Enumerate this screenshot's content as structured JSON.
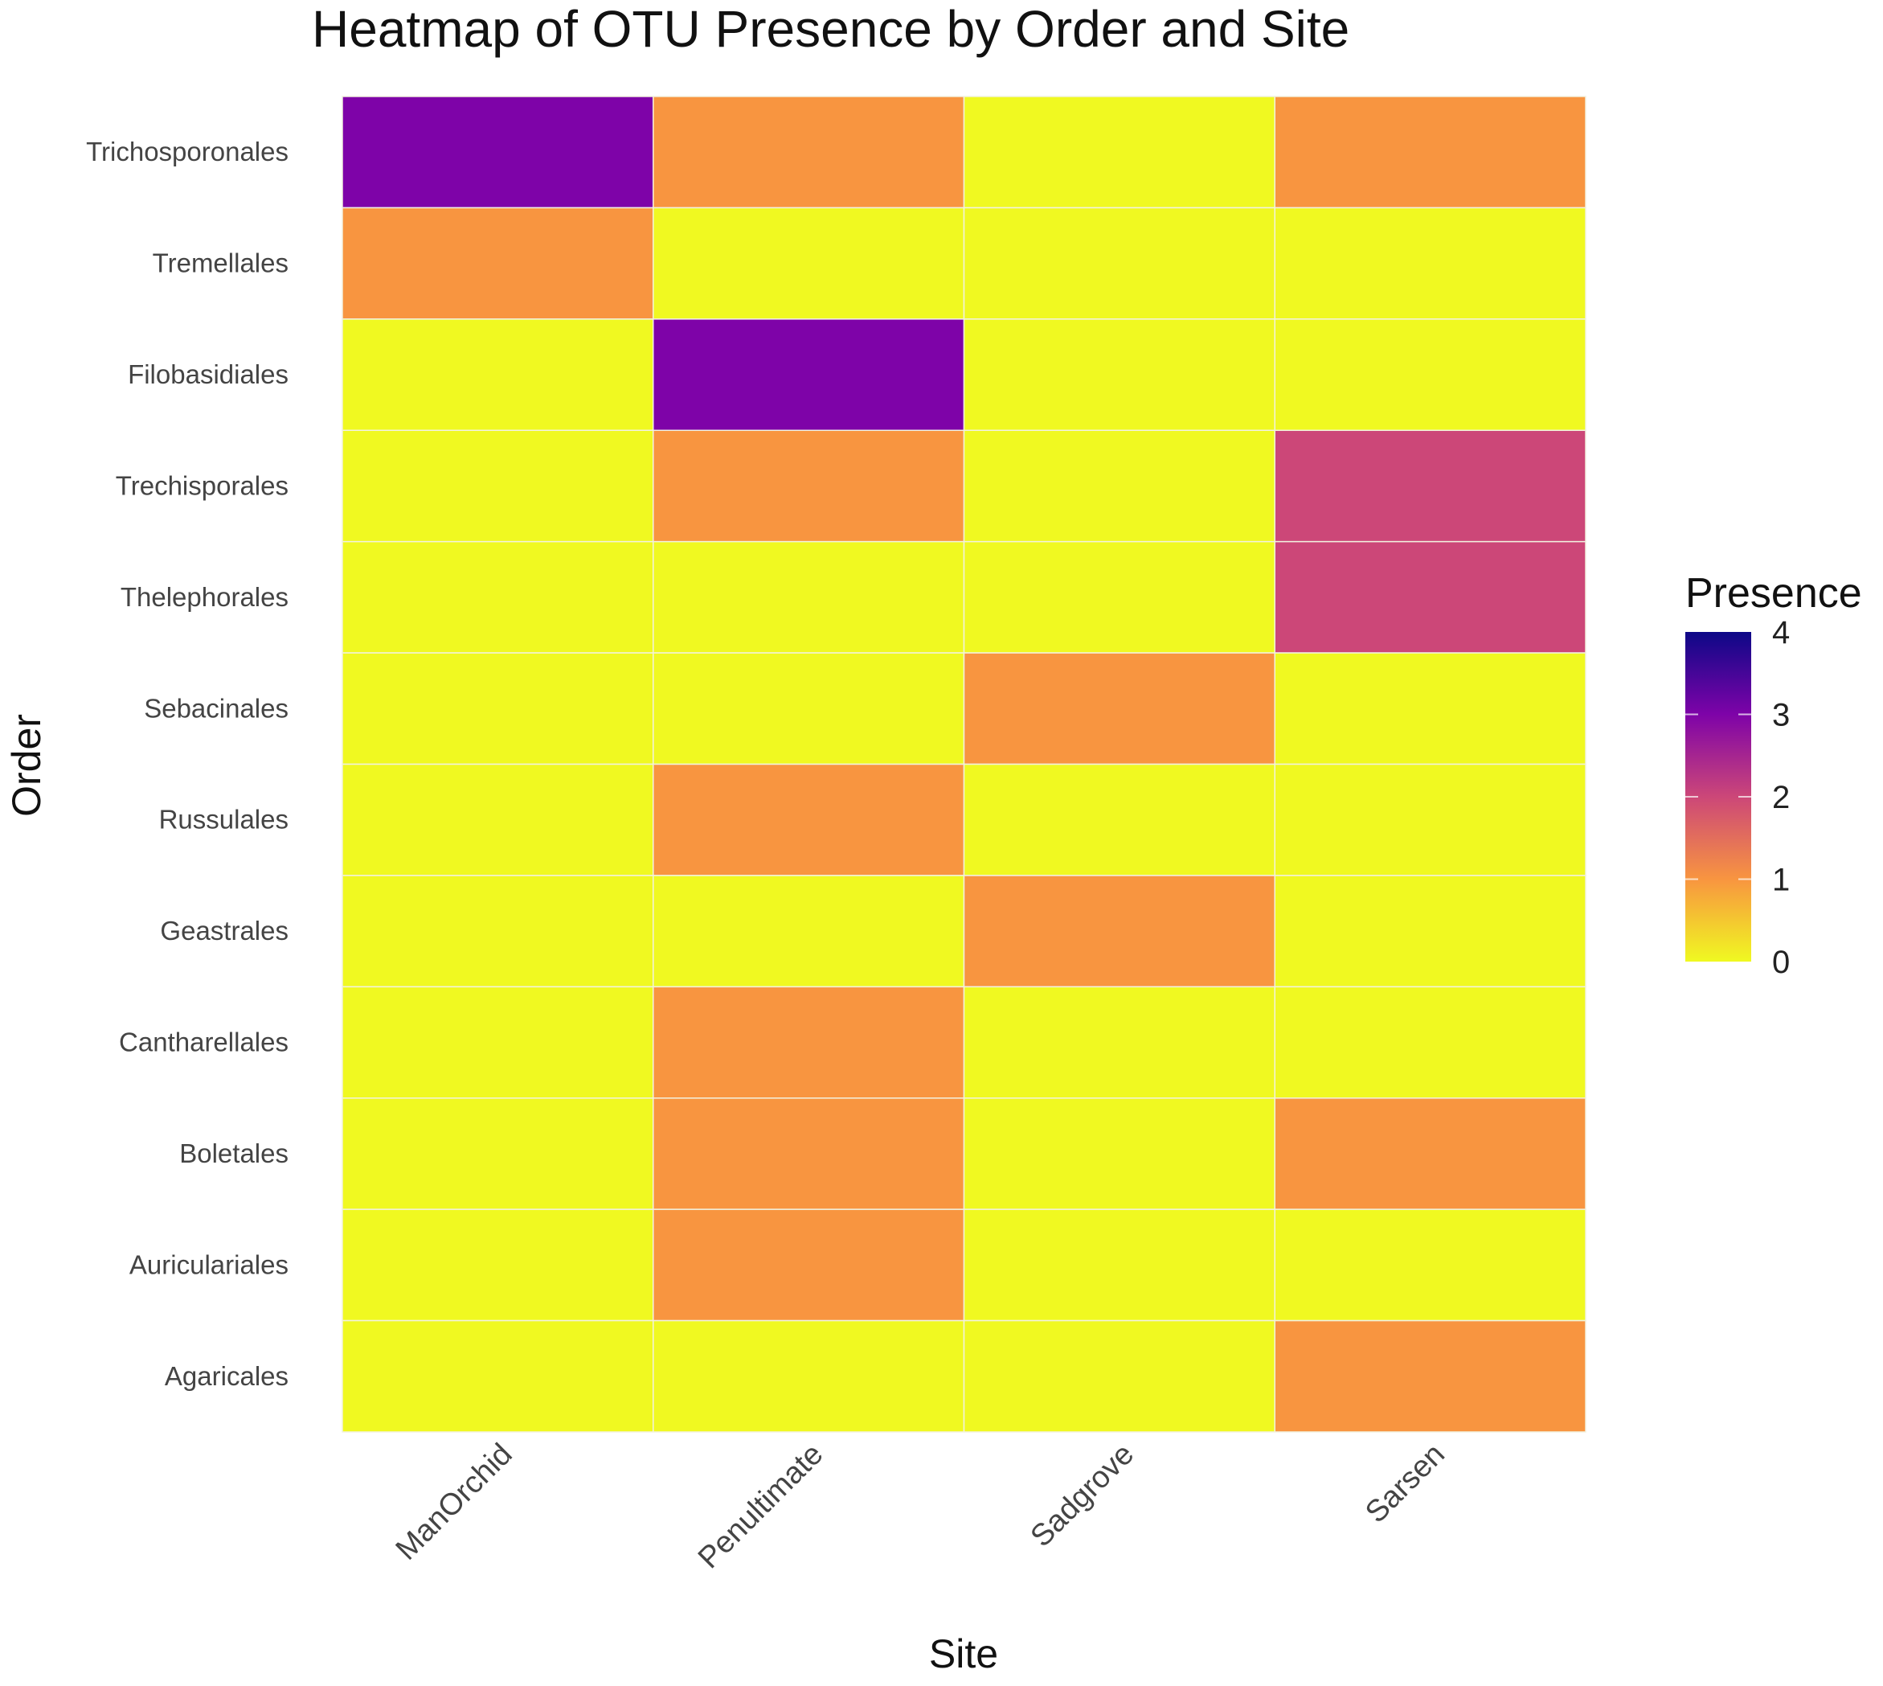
{
  "chart_data": {
    "type": "heatmap",
    "title": "Heatmap of OTU Presence by Order and Site",
    "xlabel": "Site",
    "ylabel": "Order",
    "x_categories": [
      "ManOrchid",
      "Penultimate",
      "Sadgrove",
      "Sarsen"
    ],
    "y_categories": [
      "Trichosporonales",
      "Tremellales",
      "Filobasidiales",
      "Trechisporales",
      "Thelephorales",
      "Sebacinales",
      "Russulales",
      "Geastrales",
      "Cantharellales",
      "Boletales",
      "Auriculariales",
      "Agaricales"
    ],
    "values": [
      [
        3,
        1,
        0,
        1
      ],
      [
        1,
        0,
        0,
        0
      ],
      [
        0,
        3,
        0,
        0
      ],
      [
        0,
        1,
        0,
        2
      ],
      [
        0,
        0,
        0,
        2
      ],
      [
        0,
        0,
        1,
        0
      ],
      [
        0,
        1,
        0,
        0
      ],
      [
        0,
        0,
        1,
        0
      ],
      [
        0,
        1,
        0,
        0
      ],
      [
        0,
        1,
        0,
        1
      ],
      [
        0,
        1,
        0,
        0
      ],
      [
        0,
        0,
        0,
        1
      ]
    ],
    "legend": {
      "title": "Presence",
      "ticks": [
        "0",
        "1",
        "2",
        "3",
        "4"
      ],
      "range": [
        0,
        4
      ],
      "placement": "right"
    },
    "color_stops": {
      "0": "#F0F921",
      "1": "#F89540",
      "2": "#CC4778",
      "3": "#7E03A8",
      "4": "#0D0887"
    }
  }
}
